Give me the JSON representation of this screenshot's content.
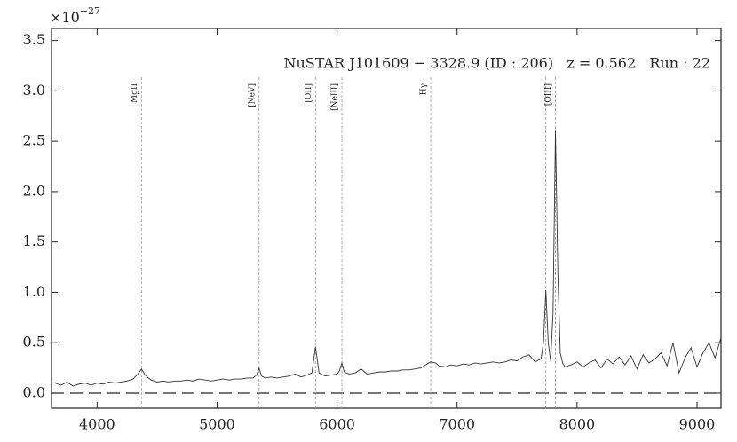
{
  "chart_data": {
    "type": "line",
    "annotation": "NuSTAR J101609 − 3328.9 (ID : 206)   z = 0.562   Run : 22",
    "y_multiplier_base": "×10",
    "y_multiplier_exponent": "−27",
    "x": [
      3650,
      3700,
      3750,
      3800,
      3850,
      3900,
      3950,
      4000,
      4050,
      4100,
      4150,
      4200,
      4250,
      4300,
      4340,
      4370,
      4400,
      4450,
      4500,
      4550,
      4600,
      4650,
      4700,
      4750,
      4800,
      4850,
      4900,
      4950,
      5000,
      5050,
      5100,
      5150,
      5200,
      5250,
      5300,
      5330,
      5350,
      5370,
      5400,
      5450,
      5500,
      5550,
      5600,
      5650,
      5700,
      5750,
      5790,
      5820,
      5850,
      5900,
      5950,
      6000,
      6020,
      6040,
      6060,
      6100,
      6150,
      6200,
      6250,
      6300,
      6350,
      6400,
      6450,
      6500,
      6550,
      6600,
      6650,
      6700,
      6750,
      6780,
      6820,
      6850,
      6900,
      6950,
      7000,
      7050,
      7100,
      7150,
      7200,
      7250,
      7300,
      7350,
      7400,
      7450,
      7500,
      7550,
      7600,
      7650,
      7700,
      7720,
      7740,
      7760,
      7780,
      7800,
      7820,
      7840,
      7860,
      7880,
      7900,
      7950,
      8000,
      8050,
      8100,
      8150,
      8200,
      8250,
      8300,
      8350,
      8400,
      8450,
      8500,
      8550,
      8600,
      8650,
      8700,
      8750,
      8800,
      8850,
      8900,
      8950,
      9000,
      9050,
      9100,
      9150,
      9200
    ],
    "series": [
      {
        "color": "#333333",
        "values": [
          0.1,
          0.08,
          0.11,
          0.07,
          0.09,
          0.1,
          0.08,
          0.1,
          0.09,
          0.11,
          0.1,
          0.11,
          0.12,
          0.14,
          0.19,
          0.24,
          0.18,
          0.13,
          0.11,
          0.12,
          0.11,
          0.12,
          0.12,
          0.13,
          0.12,
          0.14,
          0.13,
          0.12,
          0.13,
          0.14,
          0.13,
          0.14,
          0.14,
          0.15,
          0.15,
          0.18,
          0.25,
          0.17,
          0.15,
          0.16,
          0.15,
          0.16,
          0.17,
          0.19,
          0.16,
          0.18,
          0.2,
          0.46,
          0.2,
          0.17,
          0.18,
          0.19,
          0.22,
          0.3,
          0.21,
          0.19,
          0.2,
          0.24,
          0.19,
          0.2,
          0.21,
          0.21,
          0.22,
          0.22,
          0.23,
          0.23,
          0.24,
          0.25,
          0.29,
          0.31,
          0.3,
          0.27,
          0.26,
          0.28,
          0.27,
          0.29,
          0.28,
          0.3,
          0.29,
          0.3,
          0.31,
          0.3,
          0.31,
          0.33,
          0.32,
          0.36,
          0.38,
          0.31,
          0.34,
          0.5,
          1.02,
          0.5,
          0.32,
          0.8,
          2.6,
          1.2,
          0.4,
          0.3,
          0.26,
          0.28,
          0.31,
          0.26,
          0.3,
          0.33,
          0.25,
          0.34,
          0.29,
          0.36,
          0.28,
          0.37,
          0.24,
          0.38,
          0.3,
          0.34,
          0.4,
          0.27,
          0.5,
          0.2,
          0.35,
          0.45,
          0.26,
          0.4,
          0.5,
          0.35,
          0.55
        ]
      }
    ],
    "lines": [
      {
        "name": "MgII",
        "x": 4370
      },
      {
        "name": "[NeV]",
        "x": 5350
      },
      {
        "name": "[OII]",
        "x": 5820
      },
      {
        "name": "[NeIII]",
        "x": 6040
      },
      {
        "name": "Hγ",
        "x": 6780
      },
      {
        "x": 7740
      },
      {
        "name": "[OIII]",
        "x": 7820
      }
    ],
    "zero_line": 0,
    "xlim": [
      3620,
      9200
    ],
    "ylim": [
      -0.15,
      3.62
    ],
    "xticks": [
      4000,
      5000,
      6000,
      7000,
      8000,
      9000
    ],
    "yticks": [
      {
        "value": 0,
        "label": "0.0"
      },
      0.5,
      {
        "value": 1,
        "label": "1.0"
      },
      1.5,
      {
        "value": 2,
        "label": "2.0"
      },
      2.5,
      {
        "value": 3,
        "label": "3.0"
      },
      3.5
    ]
  }
}
